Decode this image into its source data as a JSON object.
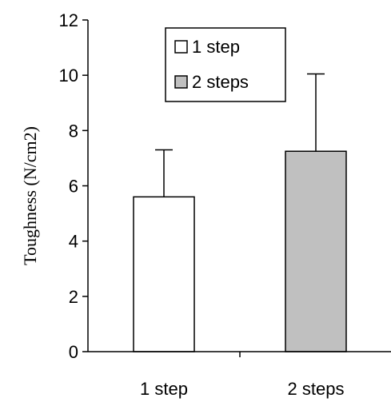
{
  "chart_data": {
    "type": "bar",
    "title": "",
    "xlabel": "",
    "ylabel": "Toughness (N/cm2)",
    "categories": [
      "1 step",
      "2 steps"
    ],
    "values": [
      5.6,
      7.25
    ],
    "error_upper": [
      1.7,
      2.8
    ],
    "ylim": [
      0,
      12
    ],
    "yticks": [
      "0",
      "2",
      "4",
      "6",
      "8",
      "10",
      "12"
    ],
    "bar_colors": [
      "#ffffff",
      "#c0c0c0"
    ],
    "grid": false,
    "legend": {
      "position": "top-center",
      "entries": [
        {
          "label": "1 step",
          "color": "#ffffff"
        },
        {
          "label": "2 steps",
          "color": "#c0c0c0"
        }
      ]
    }
  }
}
